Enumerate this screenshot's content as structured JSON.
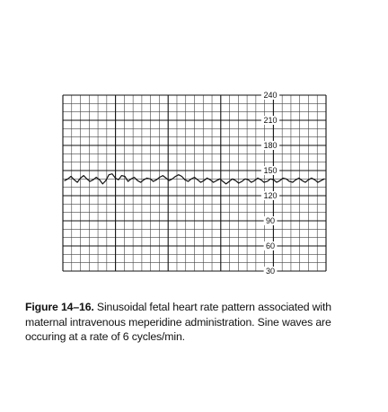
{
  "figure": {
    "label": "Figure 14–16.",
    "caption": " Sinusoidal fetal heart rate pattern associated with maternal intravenous meperidine administration. Sine waves are occuring at a rate of 6 cycles/min."
  },
  "chart_data": {
    "type": "line",
    "title": "",
    "xlabel": "",
    "ylabel": "",
    "ylim": [
      30,
      240
    ],
    "yticks": [
      30,
      60,
      90,
      120,
      150,
      180,
      210,
      240
    ],
    "grid": true,
    "series": [
      {
        "values": [
          138,
          140,
          143,
          139,
          136,
          141,
          144,
          140,
          137,
          139,
          142,
          139,
          134,
          138,
          145,
          146,
          141,
          139,
          144,
          143,
          137,
          140,
          142,
          138,
          136,
          139,
          141,
          140,
          137,
          139,
          142,
          144,
          141,
          138,
          140,
          143,
          145,
          143,
          139,
          137,
          140,
          142,
          139,
          136,
          138,
          141,
          139,
          136,
          138,
          140,
          137,
          134,
          137,
          140,
          138,
          135,
          137,
          140,
          139,
          136,
          138,
          141,
          139,
          136,
          137,
          140,
          139,
          136,
          138,
          141,
          140,
          137,
          136,
          139,
          141,
          138,
          136,
          139,
          141,
          139,
          136,
          138,
          140
        ]
      }
    ]
  }
}
